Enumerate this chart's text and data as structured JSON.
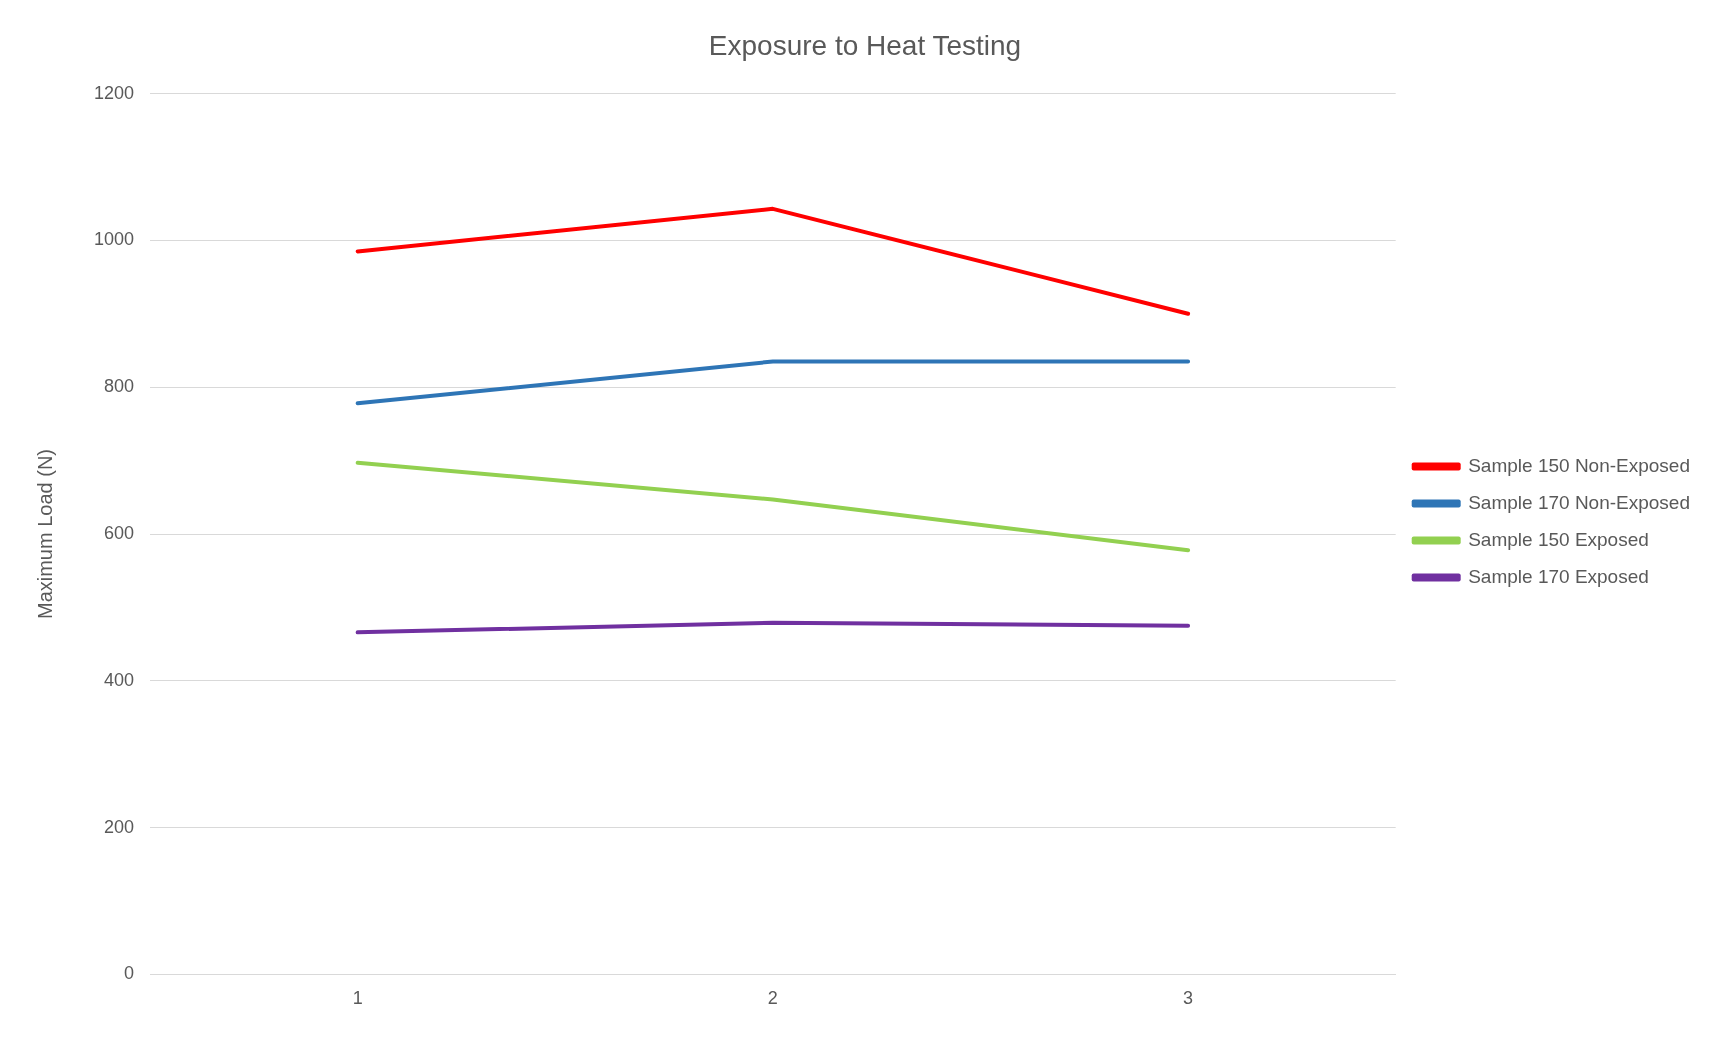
{
  "chart_data": {
    "type": "line",
    "title": "Exposure to Heat Testing",
    "ylabel": "Maximum Load (N)",
    "categories": [
      "1",
      "2",
      "3"
    ],
    "series": [
      {
        "name": "Sample 150 Non-Exposed",
        "color": "#ff0000",
        "values": [
          985,
          1043,
          900
        ]
      },
      {
        "name": "Sample 170 Non-Exposed",
        "color": "#2e75b6",
        "values": [
          778,
          835,
          835
        ]
      },
      {
        "name": "Sample 150 Exposed",
        "color": "#92d050",
        "values": [
          697,
          647,
          578
        ]
      },
      {
        "name": "Sample 170 Exposed",
        "color": "#7030a0",
        "values": [
          466,
          479,
          475
        ]
      }
    ],
    "ylim": [
      0,
      1200
    ],
    "yticks": [
      0,
      200,
      400,
      600,
      800,
      1000,
      1200
    ],
    "grid": "y",
    "legend": "right",
    "marker": "none",
    "line_style": "solid"
  }
}
